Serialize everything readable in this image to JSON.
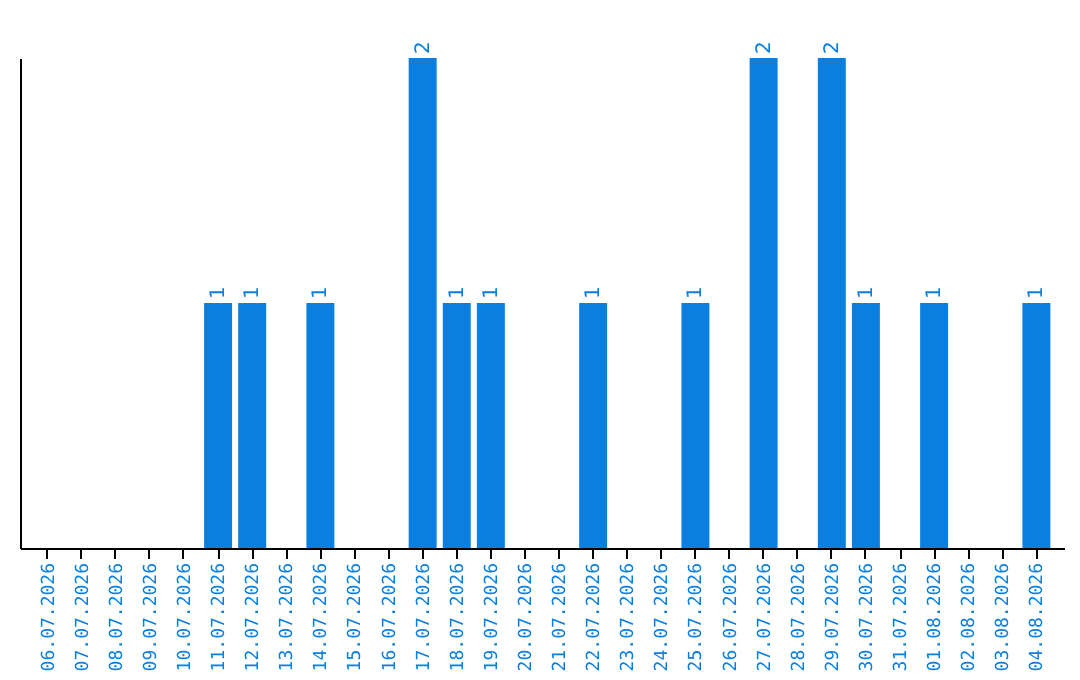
{
  "chart_data": {
    "type": "bar",
    "categories": [
      "06.07.2026",
      "07.07.2026",
      "08.07.2026",
      "09.07.2026",
      "10.07.2026",
      "11.07.2026",
      "12.07.2026",
      "13.07.2026",
      "14.07.2026",
      "15.07.2026",
      "16.07.2026",
      "17.07.2026",
      "18.07.2026",
      "19.07.2026",
      "20.07.2026",
      "21.07.2026",
      "22.07.2026",
      "23.07.2026",
      "24.07.2026",
      "25.07.2026",
      "26.07.2026",
      "27.07.2026",
      "28.07.2026",
      "29.07.2026",
      "30.07.2026",
      "31.07.2026",
      "01.08.2026",
      "02.08.2026",
      "03.08.2026",
      "04.08.2026"
    ],
    "values": [
      0,
      0,
      0,
      0,
      0,
      1,
      1,
      0,
      1,
      0,
      0,
      2,
      1,
      1,
      0,
      0,
      1,
      0,
      0,
      1,
      0,
      2,
      0,
      2,
      1,
      0,
      1,
      0,
      0,
      1
    ],
    "value_labels": [
      null,
      null,
      null,
      null,
      null,
      "1",
      "1",
      null,
      "1",
      null,
      null,
      "2",
      "1",
      "1",
      null,
      null,
      "1",
      null,
      null,
      "1",
      null,
      "2",
      null,
      "2",
      "1",
      null,
      "1",
      null,
      null,
      "1"
    ],
    "color": "#0a7fe0",
    "ylim": [
      0,
      2
    ],
    "tick_labels": "x",
    "grid": false
  }
}
